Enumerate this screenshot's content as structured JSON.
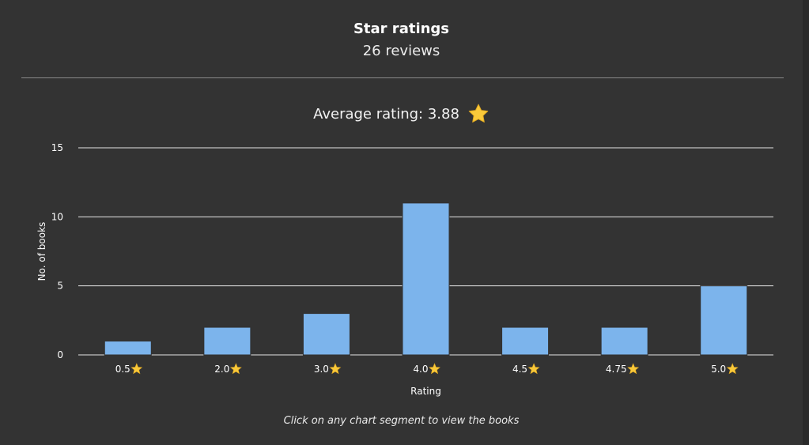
{
  "header": {
    "title": "Star ratings",
    "subtitle": "26 reviews"
  },
  "average": {
    "label": "Average rating: 3.88",
    "icon": "star-icon"
  },
  "footnote": "Click on any chart segment to view the books",
  "colors": {
    "background": "#333333",
    "bar": "#7cb4ec",
    "grid": "#e6e6e6",
    "star": "#f9c93a"
  },
  "chart_data": {
    "type": "bar",
    "categories": [
      "0.5",
      "2.0",
      "3.0",
      "4.0",
      "4.5",
      "4.75",
      "5.0"
    ],
    "category_icon": "star-icon",
    "values": [
      1,
      2,
      3,
      11,
      2,
      2,
      5
    ],
    "xlabel": "Rating",
    "ylabel": "No. of books",
    "ylim": [
      0,
      15
    ],
    "yticks": [
      0,
      5,
      10,
      15
    ],
    "grid": true,
    "legend": "none"
  }
}
